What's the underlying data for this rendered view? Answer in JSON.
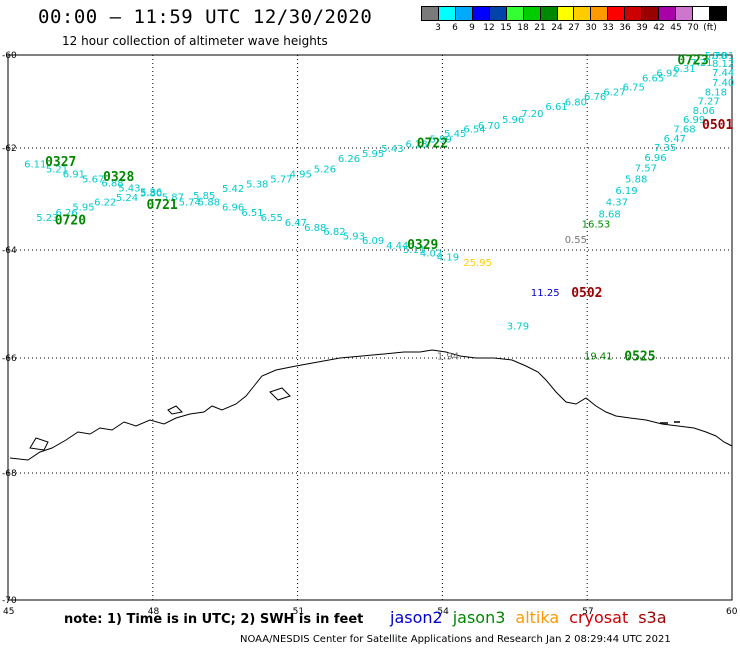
{
  "header": {
    "title": "00:00 – 11:59 UTC 12/30/2020",
    "subtitle": "12 hour collection of altimeter wave heights"
  },
  "legend": {
    "colors": [
      "#7a7a7a",
      "#00ffff",
      "#00aaff",
      "#0000ff",
      "#0044aa",
      "#33ff33",
      "#00cc00",
      "#008800",
      "#ffff00",
      "#ffcc00",
      "#ff9900",
      "#ff0000",
      "#cc0000",
      "#990000",
      "#aa00aa",
      "#cc77cc",
      "#ffffff",
      "#000000"
    ],
    "labels": [
      "3",
      "6",
      "9",
      "12",
      "15",
      "18",
      "21",
      "24",
      "27",
      "30",
      "33",
      "36",
      "39",
      "42",
      "45",
      "70",
      "(ft)"
    ]
  },
  "axes": {
    "lon_ticks": [
      "45",
      "48",
      "51",
      "54",
      "57",
      "60"
    ],
    "lat_ticks": [
      "-60",
      "-62",
      "-64",
      "-66",
      "-68",
      "-70"
    ]
  },
  "map_labels": [
    {
      "text": "6.11",
      "lon": 45.5,
      "lat": -62.3,
      "color": "#00cccc"
    },
    {
      "text": "5.21",
      "lon": 45.95,
      "lat": -62.4,
      "color": "#00cccc"
    },
    {
      "text": "6.91",
      "lon": 46.3,
      "lat": -62.5,
      "color": "#00cccc"
    },
    {
      "text": "5.67",
      "lon": 46.7,
      "lat": -62.6,
      "color": "#00cccc"
    },
    {
      "text": "6.88",
      "lon": 47.1,
      "lat": -62.68,
      "color": "#00cccc"
    },
    {
      "text": "5.43",
      "lon": 47.45,
      "lat": -62.77,
      "color": "#00cccc"
    },
    {
      "text": "5.80",
      "lon": 47.9,
      "lat": -62.87,
      "color": "#00cccc"
    },
    {
      "text": "5.87",
      "lon": 48.35,
      "lat": -62.95,
      "color": "#00cccc"
    },
    {
      "text": "5.74",
      "lon": 48.7,
      "lat": -63.05,
      "color": "#00cccc"
    },
    {
      "text": "5.85",
      "lon": 49.0,
      "lat": -62.92,
      "color": "#00cccc"
    },
    {
      "text": "5.42",
      "lon": 49.6,
      "lat": -62.78,
      "color": "#00cccc"
    },
    {
      "text": "5.38",
      "lon": 50.1,
      "lat": -62.7,
      "color": "#00cccc"
    },
    {
      "text": "5.77",
      "lon": 50.6,
      "lat": -62.6,
      "color": "#00cccc"
    },
    {
      "text": "4.95",
      "lon": 51.0,
      "lat": -62.5,
      "color": "#00cccc"
    },
    {
      "text": "5.26",
      "lon": 51.5,
      "lat": -62.4,
      "color": "#00cccc"
    },
    {
      "text": "6.26",
      "lon": 52.0,
      "lat": -62.2,
      "color": "#00cccc"
    },
    {
      "text": "5.95",
      "lon": 52.5,
      "lat": -62.1,
      "color": "#00cccc"
    },
    {
      "text": "5.43",
      "lon": 52.9,
      "lat": -62.0,
      "color": "#00cccc"
    },
    {
      "text": "6.23",
      "lon": 53.4,
      "lat": -61.9,
      "color": "#00cccc"
    },
    {
      "text": "5.99",
      "lon": 53.9,
      "lat": -61.8,
      "color": "#00cccc"
    },
    {
      "text": "5.45",
      "lon": 54.2,
      "lat": -61.68,
      "color": "#00cccc"
    },
    {
      "text": "6.54",
      "lon": 54.6,
      "lat": -61.58,
      "color": "#00cccc"
    },
    {
      "text": "6.70",
      "lon": 54.9,
      "lat": -61.5,
      "color": "#00cccc"
    },
    {
      "text": "5.96",
      "lon": 55.4,
      "lat": -61.38,
      "color": "#00cccc"
    },
    {
      "text": "7.20",
      "lon": 55.8,
      "lat": -61.25,
      "color": "#00cccc"
    },
    {
      "text": "6.61",
      "lon": 56.3,
      "lat": -61.1,
      "color": "#00cccc"
    },
    {
      "text": "6.80",
      "lon": 56.7,
      "lat": -61.0,
      "color": "#00cccc"
    },
    {
      "text": "6.76",
      "lon": 57.1,
      "lat": -60.88,
      "color": "#00cccc"
    },
    {
      "text": "6.27",
      "lon": 57.5,
      "lat": -60.78,
      "color": "#00cccc"
    },
    {
      "text": "6.75",
      "lon": 57.9,
      "lat": -60.68,
      "color": "#00cccc"
    },
    {
      "text": "6.65",
      "lon": 58.3,
      "lat": -60.48,
      "color": "#00cccc"
    },
    {
      "text": "6.92",
      "lon": 58.6,
      "lat": -60.38,
      "color": "#00cccc"
    },
    {
      "text": "6.31",
      "lon": 58.95,
      "lat": -60.28,
      "color": "#00cccc"
    },
    {
      "text": "7.21",
      "lon": 59.3,
      "lat": -60.15,
      "color": "#00cccc"
    },
    {
      "text": "5.78",
      "lon": 59.6,
      "lat": -59.98,
      "color": "#00cccc"
    },
    {
      "text": "8.01",
      "lon": 60.0,
      "lat": -59.98,
      "color": "#00cccc"
    },
    {
      "text": "8.12",
      "lon": 60.05,
      "lat": -60.17,
      "color": "#00cccc"
    },
    {
      "text": "7.44",
      "lon": 59.9,
      "lat": -60.37,
      "color": "#00cccc"
    },
    {
      "text": "7.40",
      "lon": 59.85,
      "lat": -60.58,
      "color": "#00cccc"
    },
    {
      "text": "8.18",
      "lon": 59.6,
      "lat": -60.78,
      "color": "#00cccc"
    },
    {
      "text": "7.27",
      "lon": 59.45,
      "lat": -60.98,
      "color": "#00cccc"
    },
    {
      "text": "8.06",
      "lon": 59.35,
      "lat": -61.18,
      "color": "#00cccc"
    },
    {
      "text": "6.99",
      "lon": 59.15,
      "lat": -61.38,
      "color": "#00cccc"
    },
    {
      "text": "7.68",
      "lon": 58.95,
      "lat": -61.58,
      "color": "#00cccc"
    },
    {
      "text": "6.47",
      "lon": 58.75,
      "lat": -61.78,
      "color": "#00cccc"
    },
    {
      "text": "7.35",
      "lon": 58.55,
      "lat": -61.98,
      "color": "#00cccc"
    },
    {
      "text": "6.96",
      "lon": 58.35,
      "lat": -62.18,
      "color": "#00cccc"
    },
    {
      "text": "7.57",
      "lon": 58.15,
      "lat": -62.38,
      "color": "#00cccc"
    },
    {
      "text": "5.88",
      "lon": 57.95,
      "lat": -62.6,
      "color": "#00cccc"
    },
    {
      "text": "6.19",
      "lon": 57.75,
      "lat": -62.82,
      "color": "#00cccc"
    },
    {
      "text": "4.37",
      "lon": 57.55,
      "lat": -63.05,
      "color": "#00cccc"
    },
    {
      "text": "8.68",
      "lon": 57.4,
      "lat": -63.28,
      "color": "#00cccc"
    },
    {
      "text": "16.53",
      "lon": 57.05,
      "lat": -63.48,
      "color": "#008800"
    },
    {
      "text": "0.55",
      "lon": 56.7,
      "lat": -63.78,
      "color": "#777777"
    },
    {
      "text": "5.23",
      "lon": 45.75,
      "lat": -63.35,
      "color": "#00cccc"
    },
    {
      "text": "6.26",
      "lon": 46.15,
      "lat": -63.25,
      "color": "#00cccc"
    },
    {
      "text": "5.95",
      "lon": 46.5,
      "lat": -63.15,
      "color": "#00cccc"
    },
    {
      "text": "6.22",
      "lon": 46.95,
      "lat": -63.05,
      "color": "#00cccc"
    },
    {
      "text": "5.24",
      "lon": 47.4,
      "lat": -62.96,
      "color": "#00cccc"
    },
    {
      "text": "5.36",
      "lon": 47.9,
      "lat": -62.85,
      "color": "#00cccc"
    },
    {
      "text": "5.88",
      "lon": 49.1,
      "lat": -63.05,
      "color": "#00cccc"
    },
    {
      "text": "6.96",
      "lon": 49.6,
      "lat": -63.15,
      "color": "#00cccc"
    },
    {
      "text": "6.51",
      "lon": 50.0,
      "lat": -63.25,
      "color": "#00cccc"
    },
    {
      "text": "6.55",
      "lon": 50.4,
      "lat": -63.35,
      "color": "#00cccc"
    },
    {
      "text": "6.47",
      "lon": 50.9,
      "lat": -63.45,
      "color": "#00cccc"
    },
    {
      "text": "6.88",
      "lon": 51.3,
      "lat": -63.55,
      "color": "#00cccc"
    },
    {
      "text": "6.82",
      "lon": 51.7,
      "lat": -63.63,
      "color": "#00cccc"
    },
    {
      "text": "5.93",
      "lon": 52.1,
      "lat": -63.72,
      "color": "#00cccc"
    },
    {
      "text": "6.09",
      "lon": 52.5,
      "lat": -63.8,
      "color": "#00cccc"
    },
    {
      "text": "4.44",
      "lon": 53.0,
      "lat": -63.9,
      "color": "#00cccc"
    },
    {
      "text": "5.11",
      "lon": 53.35,
      "lat": -63.98,
      "color": "#00cccc"
    },
    {
      "text": "4.02",
      "lon": 53.7,
      "lat": -64.05,
      "color": "#00cccc"
    },
    {
      "text": "4.19",
      "lon": 54.05,
      "lat": -64.12,
      "color": "#00cccc"
    },
    {
      "text": "25.95",
      "lon": 54.6,
      "lat": -64.22,
      "color": "#ffcc00"
    },
    {
      "text": "11.25",
      "lon": 56.0,
      "lat": -64.78,
      "color": "#0000cc"
    },
    {
      "text": "3.79",
      "lon": 55.5,
      "lat": -65.4,
      "color": "#00cccc"
    },
    {
      "text": "1.94",
      "lon": 54.05,
      "lat": -65.95,
      "color": "#777777"
    },
    {
      "text": "19.41",
      "lon": 57.1,
      "lat": -65.95,
      "color": "#008800"
    }
  ],
  "time_labels": [
    {
      "text": "0327",
      "lon": 46.1,
      "lat": -62.25,
      "color": "#008800"
    },
    {
      "text": "0328",
      "lon": 47.3,
      "lat": -62.55,
      "color": "#008800"
    },
    {
      "text": "0721",
      "lon": 48.2,
      "lat": -63.1,
      "color": "#008800"
    },
    {
      "text": "0720",
      "lon": 46.3,
      "lat": -63.4,
      "color": "#008800"
    },
    {
      "text": "0722",
      "lon": 53.8,
      "lat": -61.88,
      "color": "#008800"
    },
    {
      "text": "0329",
      "lon": 53.6,
      "lat": -63.88,
      "color": "#008800"
    },
    {
      "text": "0723",
      "lon": 59.2,
      "lat": -60.1,
      "color": "#008800"
    },
    {
      "text": "0501",
      "lon": 59.8,
      "lat": -61.48,
      "color": "#990000"
    },
    {
      "text": "0502",
      "lon": 57.0,
      "lat": -64.78,
      "color": "#990000"
    },
    {
      "text": "0525",
      "lon": 58.1,
      "lat": -65.95,
      "color": "#008800"
    }
  ],
  "footer": {
    "note": "note: 1) Time is in UTC; 2) SWH is in feet",
    "credit": "NOAA/NESDIS Center for Satellite Applications and Research    Jan  2 08:29:44 UTC 2021",
    "satellites": [
      {
        "name": "jason2",
        "color": "#0000cc"
      },
      {
        "name": "jason3",
        "color": "#008800"
      },
      {
        "name": "altika",
        "color": "#ff9900"
      },
      {
        "name": "cryosat",
        "color": "#cc0000"
      },
      {
        "name": "s3a",
        "color": "#990000"
      }
    ]
  }
}
